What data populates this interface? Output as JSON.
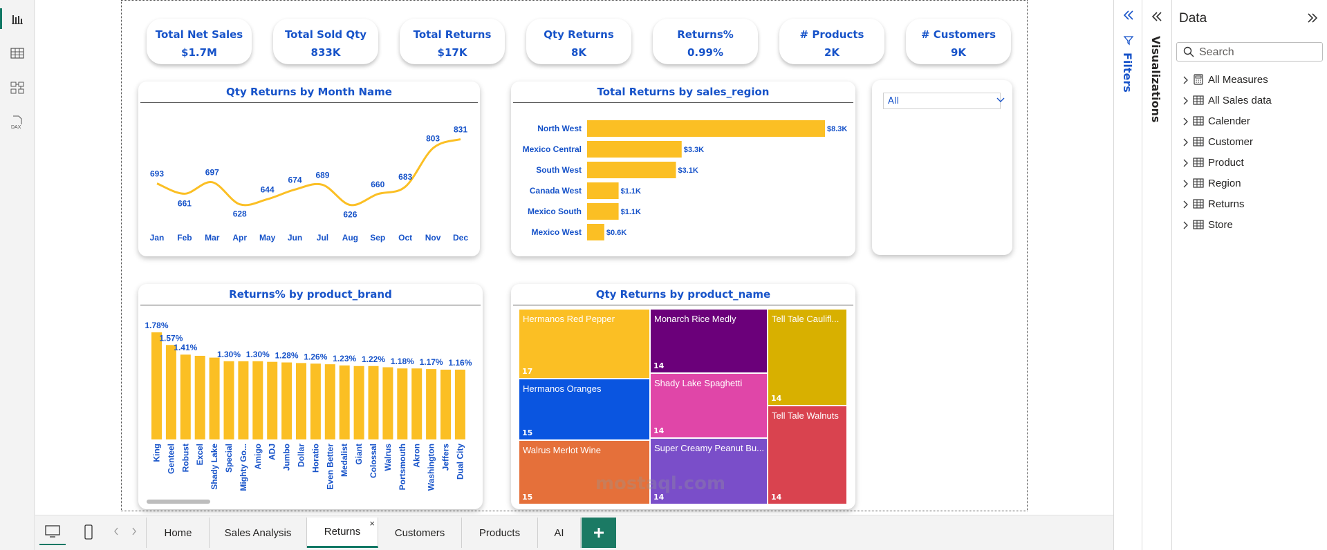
{
  "kpis": [
    {
      "label": "Total Net Sales",
      "value": "$1.7M"
    },
    {
      "label": "Total Sold Qty",
      "value": "833K"
    },
    {
      "label": "Total Returns",
      "value": "$17K"
    },
    {
      "label": "Qty Returns",
      "value": "8K"
    },
    {
      "label": "Returns%",
      "value": "0.99%"
    },
    {
      "label": "# Products",
      "value": "2K"
    },
    {
      "label": "# Customers",
      "value": "9K"
    }
  ],
  "slicer": {
    "selected": "All"
  },
  "filters_pane": {
    "label": "Filters"
  },
  "viz_pane": {
    "label": "Visualizations"
  },
  "data_pane": {
    "title": "Data",
    "search_placeholder": "Search",
    "tables": [
      "All Measures",
      "All Sales data",
      "Calender",
      "Customer",
      "Product",
      "Region",
      "Returns",
      "Store"
    ]
  },
  "tabs": [
    {
      "label": "Home"
    },
    {
      "label": "Sales Analysis"
    },
    {
      "label": "Returns",
      "active": true
    },
    {
      "label": "Customers"
    },
    {
      "label": "Products"
    },
    {
      "label": "AI"
    }
  ],
  "watermark": "mostaql.com",
  "colors": {
    "accent": "#1753c9",
    "bar": "#fbbf24",
    "active_tab": "#117865"
  },
  "chart_data": [
    {
      "id": "line",
      "type": "line",
      "title": "Qty Returns by Month Name",
      "categories": [
        "Jan",
        "Feb",
        "Mar",
        "Apr",
        "May",
        "Jun",
        "Jul",
        "Aug",
        "Sep",
        "Oct",
        "Nov",
        "Dec"
      ],
      "values": [
        693,
        661,
        697,
        628,
        644,
        674,
        689,
        626,
        660,
        683,
        803,
        831
      ],
      "color": "#fbbf24"
    },
    {
      "id": "hbar",
      "type": "bar",
      "orientation": "horizontal",
      "title": "Total Returns by sales_region",
      "categories": [
        "North West",
        "Mexico Central",
        "South West",
        "Canada West",
        "Mexico South",
        "Mexico West"
      ],
      "values": [
        8300,
        3300,
        3100,
        1100,
        1100,
        600
      ],
      "labels": [
        "$8.3K",
        "$3.3K",
        "$3.1K",
        "$1.1K",
        "$1.1K",
        "$0.6K"
      ],
      "color": "#fbbf24"
    },
    {
      "id": "vbar",
      "type": "bar",
      "title": "Returns% by product_brand",
      "categories": [
        "King",
        "Genteel",
        "Robust",
        "Excel",
        "Shady Lake",
        "Special",
        "Mighty Go...",
        "Amigo",
        "ADJ",
        "Jumbo",
        "Dollar",
        "Horatio",
        "Even Better",
        "Medalist",
        "Giant",
        "Colossal",
        "Walrus",
        "Portsmouth",
        "Akron",
        "Washington",
        "Jeffers",
        "Dual City"
      ],
      "values": [
        1.78,
        1.57,
        1.41,
        1.39,
        1.36,
        1.3,
        1.3,
        1.3,
        1.29,
        1.28,
        1.27,
        1.26,
        1.25,
        1.23,
        1.22,
        1.22,
        1.2,
        1.18,
        1.18,
        1.17,
        1.16,
        1.16
      ],
      "labels": [
        "1.78%",
        "1.57%",
        "1.41%",
        "",
        "",
        "1.30%",
        "",
        "1.30%",
        "",
        "1.28%",
        "",
        "1.26%",
        "",
        "1.23%",
        "",
        "1.22%",
        "",
        "1.18%",
        "",
        "1.17%",
        "",
        "1.16%"
      ],
      "color": "#fbbf24"
    },
    {
      "id": "treemap",
      "type": "treemap",
      "title": "Qty Returns by product_name",
      "items": [
        {
          "name": "Hermanos Red Pepper",
          "value": 17,
          "color": "#fbbf24"
        },
        {
          "name": "Hermanos Oranges",
          "value": 15,
          "color": "#0a55e0"
        },
        {
          "name": "Walrus Merlot Wine",
          "value": 15,
          "color": "#e5703a"
        },
        {
          "name": "Monarch Rice Medly",
          "value": 14,
          "color": "#6b007a"
        },
        {
          "name": "Shady Lake Spaghetti",
          "value": 14,
          "color": "#e046a8"
        },
        {
          "name": "Super Creamy Peanut Bu...",
          "value": 14,
          "color": "#7a4ec9"
        },
        {
          "name": "Tell Tale Caulifl...",
          "value": 14,
          "color": "#d8b000"
        },
        {
          "name": "Tell Tale Walnuts",
          "value": 14,
          "color": "#d9434f"
        }
      ]
    }
  ]
}
